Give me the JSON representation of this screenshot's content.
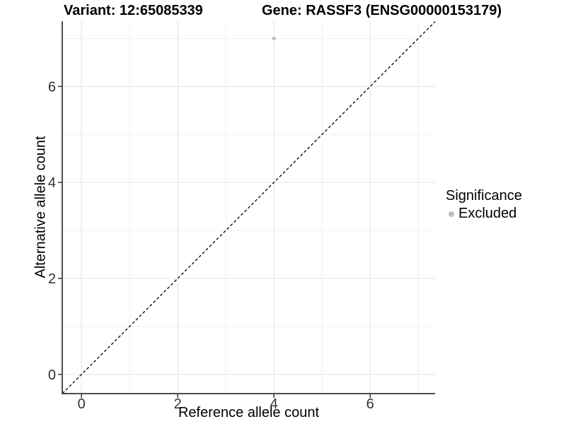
{
  "titles": {
    "variant": "Variant: 12:65085339",
    "gene": "Gene: RASSF3 (ENSG00000153179)"
  },
  "chart_data": {
    "type": "scatter",
    "title_left": "Variant: 12:65085339",
    "title_right": "Gene: RASSF3 (ENSG00000153179)",
    "xlabel": "Reference allele count",
    "ylabel": "Alternative allele count",
    "xlim": [
      -0.4,
      7.35
    ],
    "ylim": [
      -0.4,
      7.36
    ],
    "x_ticks": [
      0,
      2,
      4,
      6
    ],
    "y_ticks": [
      0,
      2,
      4,
      6
    ],
    "minor_gridlines_x": [
      1,
      3,
      5,
      7
    ],
    "minor_gridlines_y": [
      1,
      3,
      5,
      7
    ],
    "grid": true,
    "reference_line": {
      "type": "identity",
      "style": "dashed",
      "color": "#000000"
    },
    "series": [
      {
        "name": "Excluded",
        "color": "#bebebe",
        "points": [
          {
            "x": 4,
            "y": 7
          }
        ]
      }
    ],
    "legend": {
      "position": "right",
      "title": "Significance",
      "items": [
        {
          "label": "Excluded",
          "color": "#bebebe"
        }
      ]
    },
    "colors": {
      "grid_major": "#e3e3e3",
      "grid_minor": "#efefef",
      "axis_line": "#4d4d4d",
      "tick_mark": "#333333",
      "tick_label": "#333333",
      "point": "#bebebe"
    }
  }
}
